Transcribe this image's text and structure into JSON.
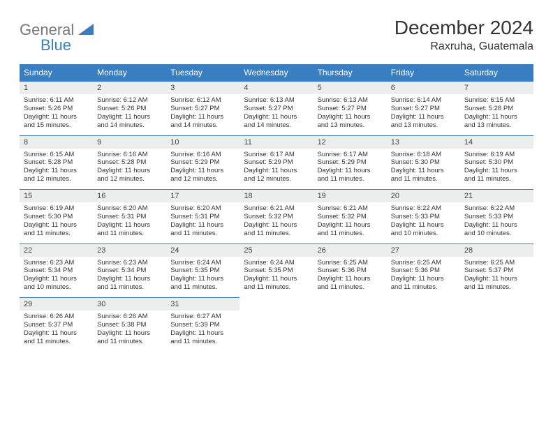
{
  "logo": {
    "line1": "General",
    "line2": "Blue",
    "color_gray": "#777777",
    "color_blue": "#3a7ec2"
  },
  "title": "December 2024",
  "location": "Raxruha, Guatemala",
  "header_bg": "#3a7ec2",
  "daynum_bg": "#eceded",
  "border_color": "#3a7ec2",
  "title_fontsize": 28,
  "location_fontsize": 16,
  "daynum_fontsize": 11,
  "body_fontsize": 9.5,
  "headers": [
    "Sunday",
    "Monday",
    "Tuesday",
    "Wednesday",
    "Thursday",
    "Friday",
    "Saturday"
  ],
  "weeks": [
    [
      {
        "n": "1",
        "sr": "6:11 AM",
        "ss": "5:26 PM",
        "dl": "11 hours and 15 minutes."
      },
      {
        "n": "2",
        "sr": "6:12 AM",
        "ss": "5:26 PM",
        "dl": "11 hours and 14 minutes."
      },
      {
        "n": "3",
        "sr": "6:12 AM",
        "ss": "5:27 PM",
        "dl": "11 hours and 14 minutes."
      },
      {
        "n": "4",
        "sr": "6:13 AM",
        "ss": "5:27 PM",
        "dl": "11 hours and 14 minutes."
      },
      {
        "n": "5",
        "sr": "6:13 AM",
        "ss": "5:27 PM",
        "dl": "11 hours and 13 minutes."
      },
      {
        "n": "6",
        "sr": "6:14 AM",
        "ss": "5:27 PM",
        "dl": "11 hours and 13 minutes."
      },
      {
        "n": "7",
        "sr": "6:15 AM",
        "ss": "5:28 PM",
        "dl": "11 hours and 13 minutes."
      }
    ],
    [
      {
        "n": "8",
        "sr": "6:15 AM",
        "ss": "5:28 PM",
        "dl": "11 hours and 12 minutes."
      },
      {
        "n": "9",
        "sr": "6:16 AM",
        "ss": "5:28 PM",
        "dl": "11 hours and 12 minutes."
      },
      {
        "n": "10",
        "sr": "6:16 AM",
        "ss": "5:29 PM",
        "dl": "11 hours and 12 minutes."
      },
      {
        "n": "11",
        "sr": "6:17 AM",
        "ss": "5:29 PM",
        "dl": "11 hours and 12 minutes."
      },
      {
        "n": "12",
        "sr": "6:17 AM",
        "ss": "5:29 PM",
        "dl": "11 hours and 11 minutes."
      },
      {
        "n": "13",
        "sr": "6:18 AM",
        "ss": "5:30 PM",
        "dl": "11 hours and 11 minutes."
      },
      {
        "n": "14",
        "sr": "6:19 AM",
        "ss": "5:30 PM",
        "dl": "11 hours and 11 minutes."
      }
    ],
    [
      {
        "n": "15",
        "sr": "6:19 AM",
        "ss": "5:30 PM",
        "dl": "11 hours and 11 minutes."
      },
      {
        "n": "16",
        "sr": "6:20 AM",
        "ss": "5:31 PM",
        "dl": "11 hours and 11 minutes."
      },
      {
        "n": "17",
        "sr": "6:20 AM",
        "ss": "5:31 PM",
        "dl": "11 hours and 11 minutes."
      },
      {
        "n": "18",
        "sr": "6:21 AM",
        "ss": "5:32 PM",
        "dl": "11 hours and 11 minutes."
      },
      {
        "n": "19",
        "sr": "6:21 AM",
        "ss": "5:32 PM",
        "dl": "11 hours and 11 minutes."
      },
      {
        "n": "20",
        "sr": "6:22 AM",
        "ss": "5:33 PM",
        "dl": "11 hours and 10 minutes."
      },
      {
        "n": "21",
        "sr": "6:22 AM",
        "ss": "5:33 PM",
        "dl": "11 hours and 10 minutes."
      }
    ],
    [
      {
        "n": "22",
        "sr": "6:23 AM",
        "ss": "5:34 PM",
        "dl": "11 hours and 10 minutes."
      },
      {
        "n": "23",
        "sr": "6:23 AM",
        "ss": "5:34 PM",
        "dl": "11 hours and 11 minutes."
      },
      {
        "n": "24",
        "sr": "6:24 AM",
        "ss": "5:35 PM",
        "dl": "11 hours and 11 minutes."
      },
      {
        "n": "25",
        "sr": "6:24 AM",
        "ss": "5:35 PM",
        "dl": "11 hours and 11 minutes."
      },
      {
        "n": "26",
        "sr": "6:25 AM",
        "ss": "5:36 PM",
        "dl": "11 hours and 11 minutes."
      },
      {
        "n": "27",
        "sr": "6:25 AM",
        "ss": "5:36 PM",
        "dl": "11 hours and 11 minutes."
      },
      {
        "n": "28",
        "sr": "6:25 AM",
        "ss": "5:37 PM",
        "dl": "11 hours and 11 minutes."
      }
    ],
    [
      {
        "n": "29",
        "sr": "6:26 AM",
        "ss": "5:37 PM",
        "dl": "11 hours and 11 minutes."
      },
      {
        "n": "30",
        "sr": "6:26 AM",
        "ss": "5:38 PM",
        "dl": "11 hours and 11 minutes."
      },
      {
        "n": "31",
        "sr": "6:27 AM",
        "ss": "5:39 PM",
        "dl": "11 hours and 11 minutes."
      },
      null,
      null,
      null,
      null
    ]
  ]
}
